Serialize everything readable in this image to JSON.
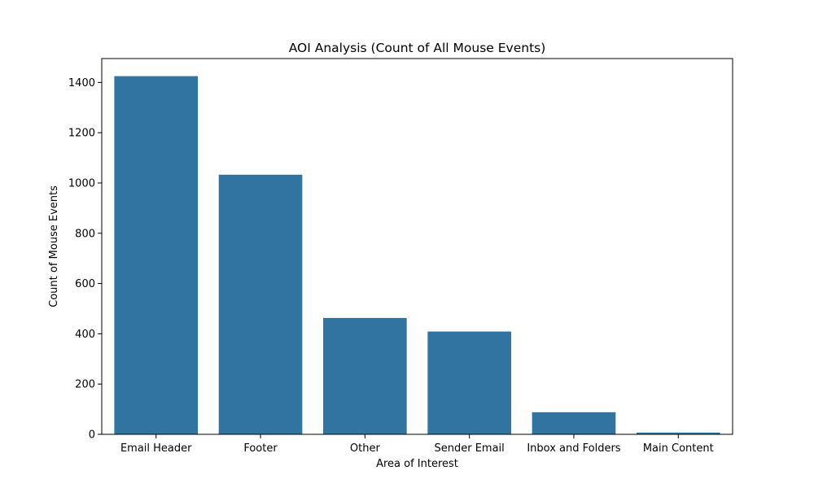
{
  "chart_data": {
    "type": "bar",
    "title": "AOI Analysis (Count of All Mouse Events)",
    "xlabel": "Area of Interest",
    "ylabel": "Count of Mouse Events",
    "categories": [
      "Email Header",
      "Footer",
      "Other",
      "Sender Email",
      "Inbox and Folders",
      "Main Content"
    ],
    "values": [
      1425,
      1033,
      463,
      409,
      88,
      7
    ],
    "ylim": [
      0,
      1495
    ],
    "yticks": [
      0,
      200,
      400,
      600,
      800,
      1000,
      1200,
      1400
    ],
    "ytick_labels": [
      "0",
      "200",
      "400",
      "600",
      "800",
      "1000",
      "1200",
      "1400"
    ],
    "bar_color": "#3274a1",
    "grid": false,
    "legend": false
  }
}
